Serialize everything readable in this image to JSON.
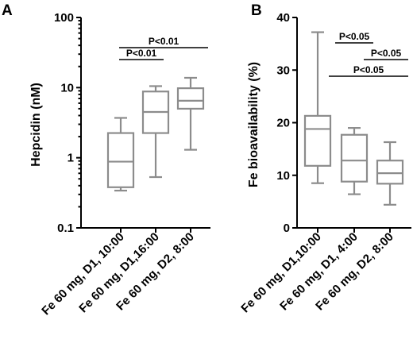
{
  "colors": {
    "box_stroke": "#8c8c8c",
    "axis": "#000000",
    "background": "#ffffff"
  },
  "chart_data": [
    {
      "panel": "A",
      "type": "box",
      "ylabel": "Hepcidin (nM)",
      "yscale": "log",
      "ylim": [
        0.1,
        100
      ],
      "yticks": [
        0.1,
        1,
        10,
        100
      ],
      "ytick_labels": [
        "0.1",
        "1",
        "10",
        "100"
      ],
      "categories": [
        "Fe 60 mg, D1, 10:00",
        "Fe 60 mg, D1,16:00",
        "Fe 60 mg, D2, 8:00"
      ],
      "boxes": [
        {
          "min": 0.34,
          "q1": 0.38,
          "median": 0.88,
          "q3": 2.25,
          "max": 3.7
        },
        {
          "min": 0.53,
          "q1": 2.25,
          "median": 4.5,
          "q3": 8.8,
          "max": 10.5
        },
        {
          "min": 1.3,
          "q1": 5.0,
          "median": 6.5,
          "q3": 9.8,
          "max": 13.8
        }
      ],
      "significance": [
        {
          "from": 0,
          "to": 1,
          "label": "P<0.01",
          "level": 0
        },
        {
          "from": 0,
          "to": 2,
          "label": "P<0.01",
          "level": 1
        }
      ],
      "grid": false
    },
    {
      "panel": "B",
      "type": "box",
      "ylabel": "Fe bioavailability (%)",
      "yscale": "linear",
      "ylim": [
        0,
        40
      ],
      "yticks": [
        0,
        10,
        20,
        30,
        40
      ],
      "ytick_labels": [
        "0",
        "10",
        "20",
        "30",
        "40"
      ],
      "categories": [
        "Fe 60 mg, D1,10:00",
        "Fe 60 mg, D1, 4:00",
        "Fe 60 mg, D2, 8:00"
      ],
      "boxes": [
        {
          "min": 8.5,
          "q1": 11.8,
          "median": 18.8,
          "q3": 21.3,
          "max": 37.2
        },
        {
          "min": 6.4,
          "q1": 8.8,
          "median": 12.8,
          "q3": 17.7,
          "max": 19.0
        },
        {
          "min": 4.4,
          "q1": 8.4,
          "median": 10.4,
          "q3": 12.8,
          "max": 16.3
        }
      ],
      "significance": [
        {
          "from": 0,
          "to": 1,
          "label": "P<0.05",
          "level": 2
        },
        {
          "from": 1,
          "to": 2,
          "label": "P<0.05",
          "level": 1
        },
        {
          "from": 0,
          "to": 2,
          "label": "P<0.05",
          "level": 0
        }
      ],
      "grid": false
    }
  ]
}
